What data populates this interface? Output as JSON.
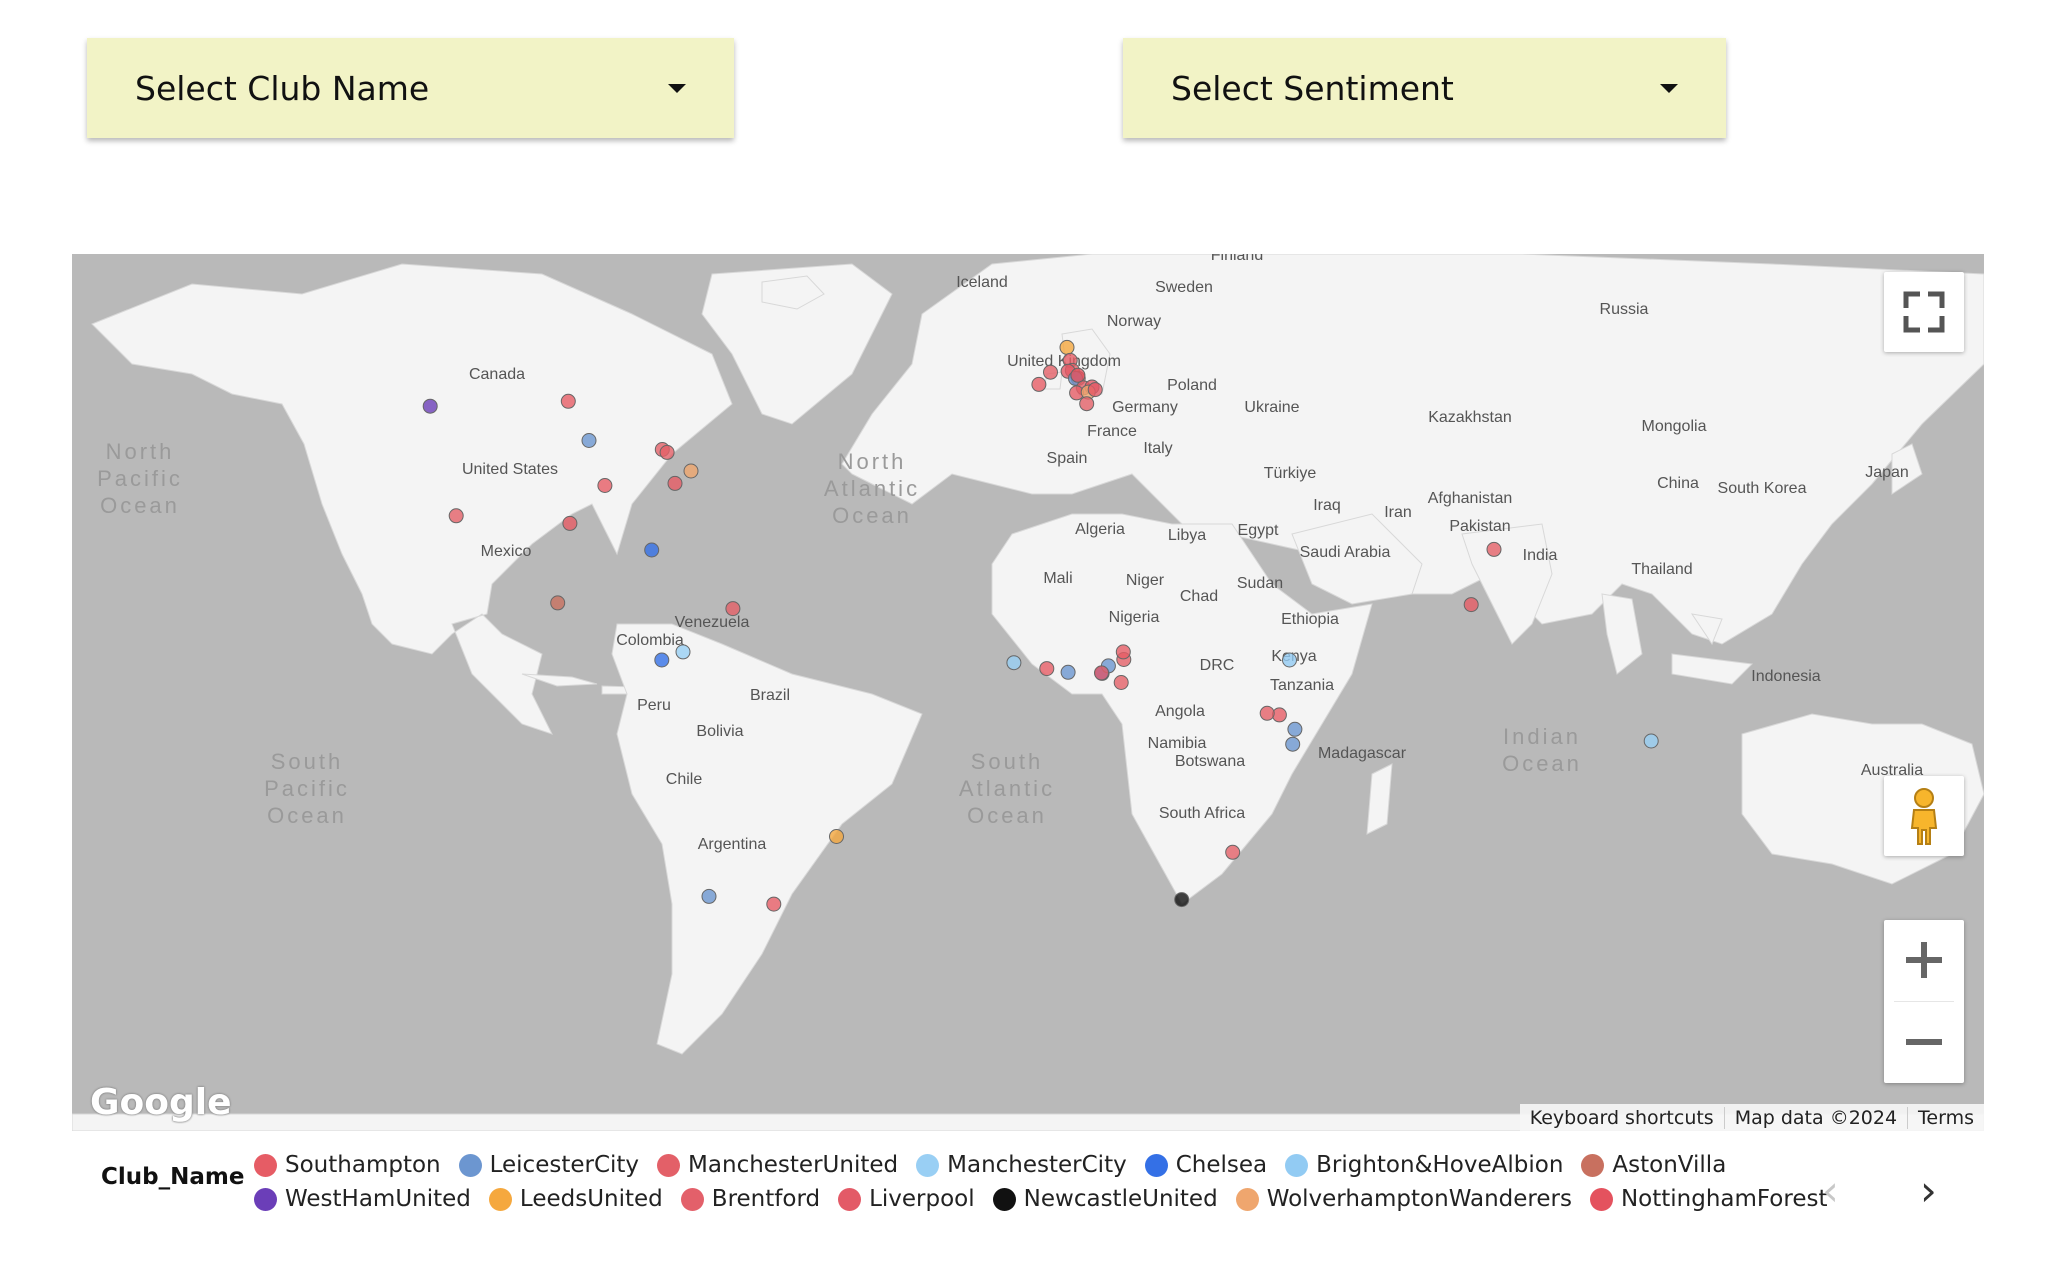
{
  "filters": {
    "club": {
      "label": "Select Club Name",
      "icon": "caret-down-icon"
    },
    "sentiment": {
      "label": "Select Sentiment",
      "icon": "caret-down-icon"
    }
  },
  "map": {
    "water_color": "#b9b9b9",
    "land_color": "#f4f4f4",
    "ocean_labels": [
      {
        "text": "North Pacific Ocean"
      },
      {
        "text": "North Atlantic Ocean"
      },
      {
        "text": "South Pacific Ocean"
      },
      {
        "text": "South Atlantic Ocean"
      },
      {
        "text": "Indian Ocean"
      }
    ],
    "country_labels": [
      {
        "text": "Finland"
      },
      {
        "text": "Iceland"
      },
      {
        "text": "Sweden"
      },
      {
        "text": "Norway"
      },
      {
        "text": "Russia"
      },
      {
        "text": "Canada"
      },
      {
        "text": "United Kingdom"
      },
      {
        "text": "Poland"
      },
      {
        "text": "Germany"
      },
      {
        "text": "Ukraine"
      },
      {
        "text": "Kazakhstan"
      },
      {
        "text": "Mongolia"
      },
      {
        "text": "France"
      },
      {
        "text": "Italy"
      },
      {
        "text": "Spain"
      },
      {
        "text": "United States"
      },
      {
        "text": "Türkiye"
      },
      {
        "text": "Iraq"
      },
      {
        "text": "Iran"
      },
      {
        "text": "Afghanistan"
      },
      {
        "text": "China"
      },
      {
        "text": "South Korea"
      },
      {
        "text": "Japan"
      },
      {
        "text": "Pakistan"
      },
      {
        "text": "Algeria"
      },
      {
        "text": "Libya"
      },
      {
        "text": "Egypt"
      },
      {
        "text": "Saudi Arabia"
      },
      {
        "text": "India"
      },
      {
        "text": "Mexico"
      },
      {
        "text": "Mali"
      },
      {
        "text": "Niger"
      },
      {
        "text": "Sudan"
      },
      {
        "text": "Thailand"
      },
      {
        "text": "Chad"
      },
      {
        "text": "Venezuela"
      },
      {
        "text": "Nigeria"
      },
      {
        "text": "Ethiopia"
      },
      {
        "text": "Colombia"
      },
      {
        "text": "Kenya"
      },
      {
        "text": "DRC"
      },
      {
        "text": "Brazil"
      },
      {
        "text": "Tanzania"
      },
      {
        "text": "Indonesia"
      },
      {
        "text": "Peru"
      },
      {
        "text": "Angola"
      },
      {
        "text": "Bolivia"
      },
      {
        "text": "Namibia"
      },
      {
        "text": "Madagascar"
      },
      {
        "text": "Botswana"
      },
      {
        "text": "Australia"
      },
      {
        "text": "Chile"
      },
      {
        "text": "South Africa"
      },
      {
        "text": "Argentina"
      }
    ],
    "markers": [
      {
        "club": "WestHamUnited",
        "lat": 49.3,
        "lon": -123.1
      },
      {
        "club": "Southampton",
        "lat": 49.9,
        "lon": -97.1
      },
      {
        "club": "LeicesterCity",
        "lat": 44.9,
        "lon": -93.2
      },
      {
        "club": "ManchesterUnited",
        "lat": 43.7,
        "lon": -79.4
      },
      {
        "club": "ManchesterUnited",
        "lat": 43.3,
        "lon": -78.5
      },
      {
        "club": "WolverhamptonWanderers",
        "lat": 40.7,
        "lon": -74.0
      },
      {
        "club": "Southampton",
        "lat": 38.6,
        "lon": -90.2
      },
      {
        "club": "Southampton",
        "lat": 38.9,
        "lon": -77.0
      },
      {
        "club": "ManchesterUnited",
        "lat": 34.0,
        "lon": -118.2
      },
      {
        "club": "Southampton",
        "lat": 32.8,
        "lon": -96.8
      },
      {
        "club": "Chelsea",
        "lat": 28.5,
        "lon": -81.4
      },
      {
        "club": "AstonVilla",
        "lat": 19.4,
        "lon": -99.1
      },
      {
        "club": "ManchesterUnited",
        "lat": 18.4,
        "lon": -66.1
      },
      {
        "club": "Chelsea",
        "lat": 9.0,
        "lon": -79.5
      },
      {
        "club": "ManchesterCity",
        "lat": 10.5,
        "lon": -75.5
      },
      {
        "club": "LeedsUnited",
        "lat": -23.5,
        "lon": -46.6
      },
      {
        "club": "LeicesterCity",
        "lat": -33.4,
        "lon": -70.6
      },
      {
        "club": "Southampton",
        "lat": -34.6,
        "lon": -58.4
      },
      {
        "club": "LeedsUnited",
        "lat": 56.0,
        "lon": -3.2
      },
      {
        "club": "Southampton",
        "lat": 54.6,
        "lon": -2.6
      },
      {
        "club": "ManchesterUnited",
        "lat": 53.5,
        "lon": -2.2
      },
      {
        "club": "Liverpool",
        "lat": 53.4,
        "lon": -3.0
      },
      {
        "club": "Brentford",
        "lat": 52.6,
        "lon": -1.1
      },
      {
        "club": "LeicesterCity",
        "lat": 52.6,
        "lon": -1.6
      },
      {
        "club": "NottinghamForest",
        "lat": 52.95,
        "lon": -1.15
      },
      {
        "club": "ManchesterUnited",
        "lat": 51.5,
        "lon": -0.1
      },
      {
        "club": "Southampton",
        "lat": 50.9,
        "lon": -1.4
      },
      {
        "club": "Southampton",
        "lat": 51.9,
        "lon": -8.5
      },
      {
        "club": "ManchesterUnited",
        "lat": 53.3,
        "lon": -6.3
      },
      {
        "club": "Liverpool",
        "lat": 51.6,
        "lon": 1.5
      },
      {
        "club": "WolverhamptonWanderers",
        "lat": 51.0,
        "lon": 0.8
      },
      {
        "club": "Liverpool",
        "lat": 51.3,
        "lon": 2.1
      },
      {
        "club": "ManchesterUnited",
        "lat": 49.6,
        "lon": 0.5
      },
      {
        "club": "ManchesterCity",
        "lat": 8.5,
        "lon": -13.2
      },
      {
        "club": "Southampton",
        "lat": 7.4,
        "lon": -7.0
      },
      {
        "club": "LeicesterCity",
        "lat": 6.7,
        "lon": -3.0
      },
      {
        "club": "Chelsea",
        "lat": 6.5,
        "lon": 3.4
      },
      {
        "club": "LeicesterCity",
        "lat": 7.9,
        "lon": 4.6
      },
      {
        "club": "ManchesterUnited",
        "lat": 9.1,
        "lon": 7.5
      },
      {
        "club": "Southampton",
        "lat": 10.5,
        "lon": 7.4
      },
      {
        "club": "Southampton",
        "lat": 6.6,
        "lon": 3.3
      },
      {
        "club": "ManchesterUnited",
        "lat": 4.8,
        "lon": 7.0
      },
      {
        "club": "Brighton&HoveAlbion",
        "lat": 9.0,
        "lon": 38.7
      },
      {
        "club": "Southampton",
        "lat": -1.3,
        "lon": 36.8
      },
      {
        "club": "ManchesterUnited",
        "lat": -1.0,
        "lon": 34.5
      },
      {
        "club": "LeicesterCity",
        "lat": -4.0,
        "lon": 39.7
      },
      {
        "club": "LeicesterCity",
        "lat": -6.8,
        "lon": 39.3
      },
      {
        "club": "ManchesterUnited",
        "lat": -26.2,
        "lon": 28.0
      },
      {
        "club": "NewcastleUnited",
        "lat": -33.9,
        "lon": 18.4
      },
      {
        "club": "ManchesterUnited",
        "lat": 28.6,
        "lon": 77.2
      },
      {
        "club": "Southampton",
        "lat": 19.1,
        "lon": 72.9
      },
      {
        "club": "ManchesterCity",
        "lat": -6.2,
        "lon": 106.8
      }
    ]
  },
  "controls": {
    "fullscreen_icon": "fullscreen-icon",
    "pegman_icon": "pegman-icon",
    "zoom_in_icon": "plus-icon",
    "zoom_out_icon": "minus-icon"
  },
  "attribution": {
    "logo": "Google",
    "shortcuts": "Keyboard shortcuts",
    "map_data": "Map data ©2024",
    "terms": "Terms"
  },
  "legend": {
    "title": "Club_Name",
    "items": [
      {
        "label": "Southampton",
        "color": "#e65c65"
      },
      {
        "label": "LeicesterCity",
        "color": "#6c96d0"
      },
      {
        "label": "ManchesterUnited",
        "color": "#e36068"
      },
      {
        "label": "ManchesterCity",
        "color": "#99cff4"
      },
      {
        "label": "Chelsea",
        "color": "#3470e6"
      },
      {
        "label": "Brighton&HoveAlbion",
        "color": "#92cbf3"
      },
      {
        "label": "AstonVilla",
        "color": "#c8705f"
      },
      {
        "label": "WestHamUnited",
        "color": "#6b3eb8"
      },
      {
        "label": "LeedsUnited",
        "color": "#f5a83e"
      },
      {
        "label": "Brentford",
        "color": "#e3606a"
      },
      {
        "label": "Liverpool",
        "color": "#e35a67"
      },
      {
        "label": "NewcastleUnited",
        "color": "#111111"
      },
      {
        "label": "WolverhamptonWanderers",
        "color": "#efa66e"
      },
      {
        "label": "NottinghamForest",
        "color": "#e4525e"
      }
    ],
    "prev_icon": "chevron-left-icon",
    "next_icon": "chevron-right-icon"
  }
}
